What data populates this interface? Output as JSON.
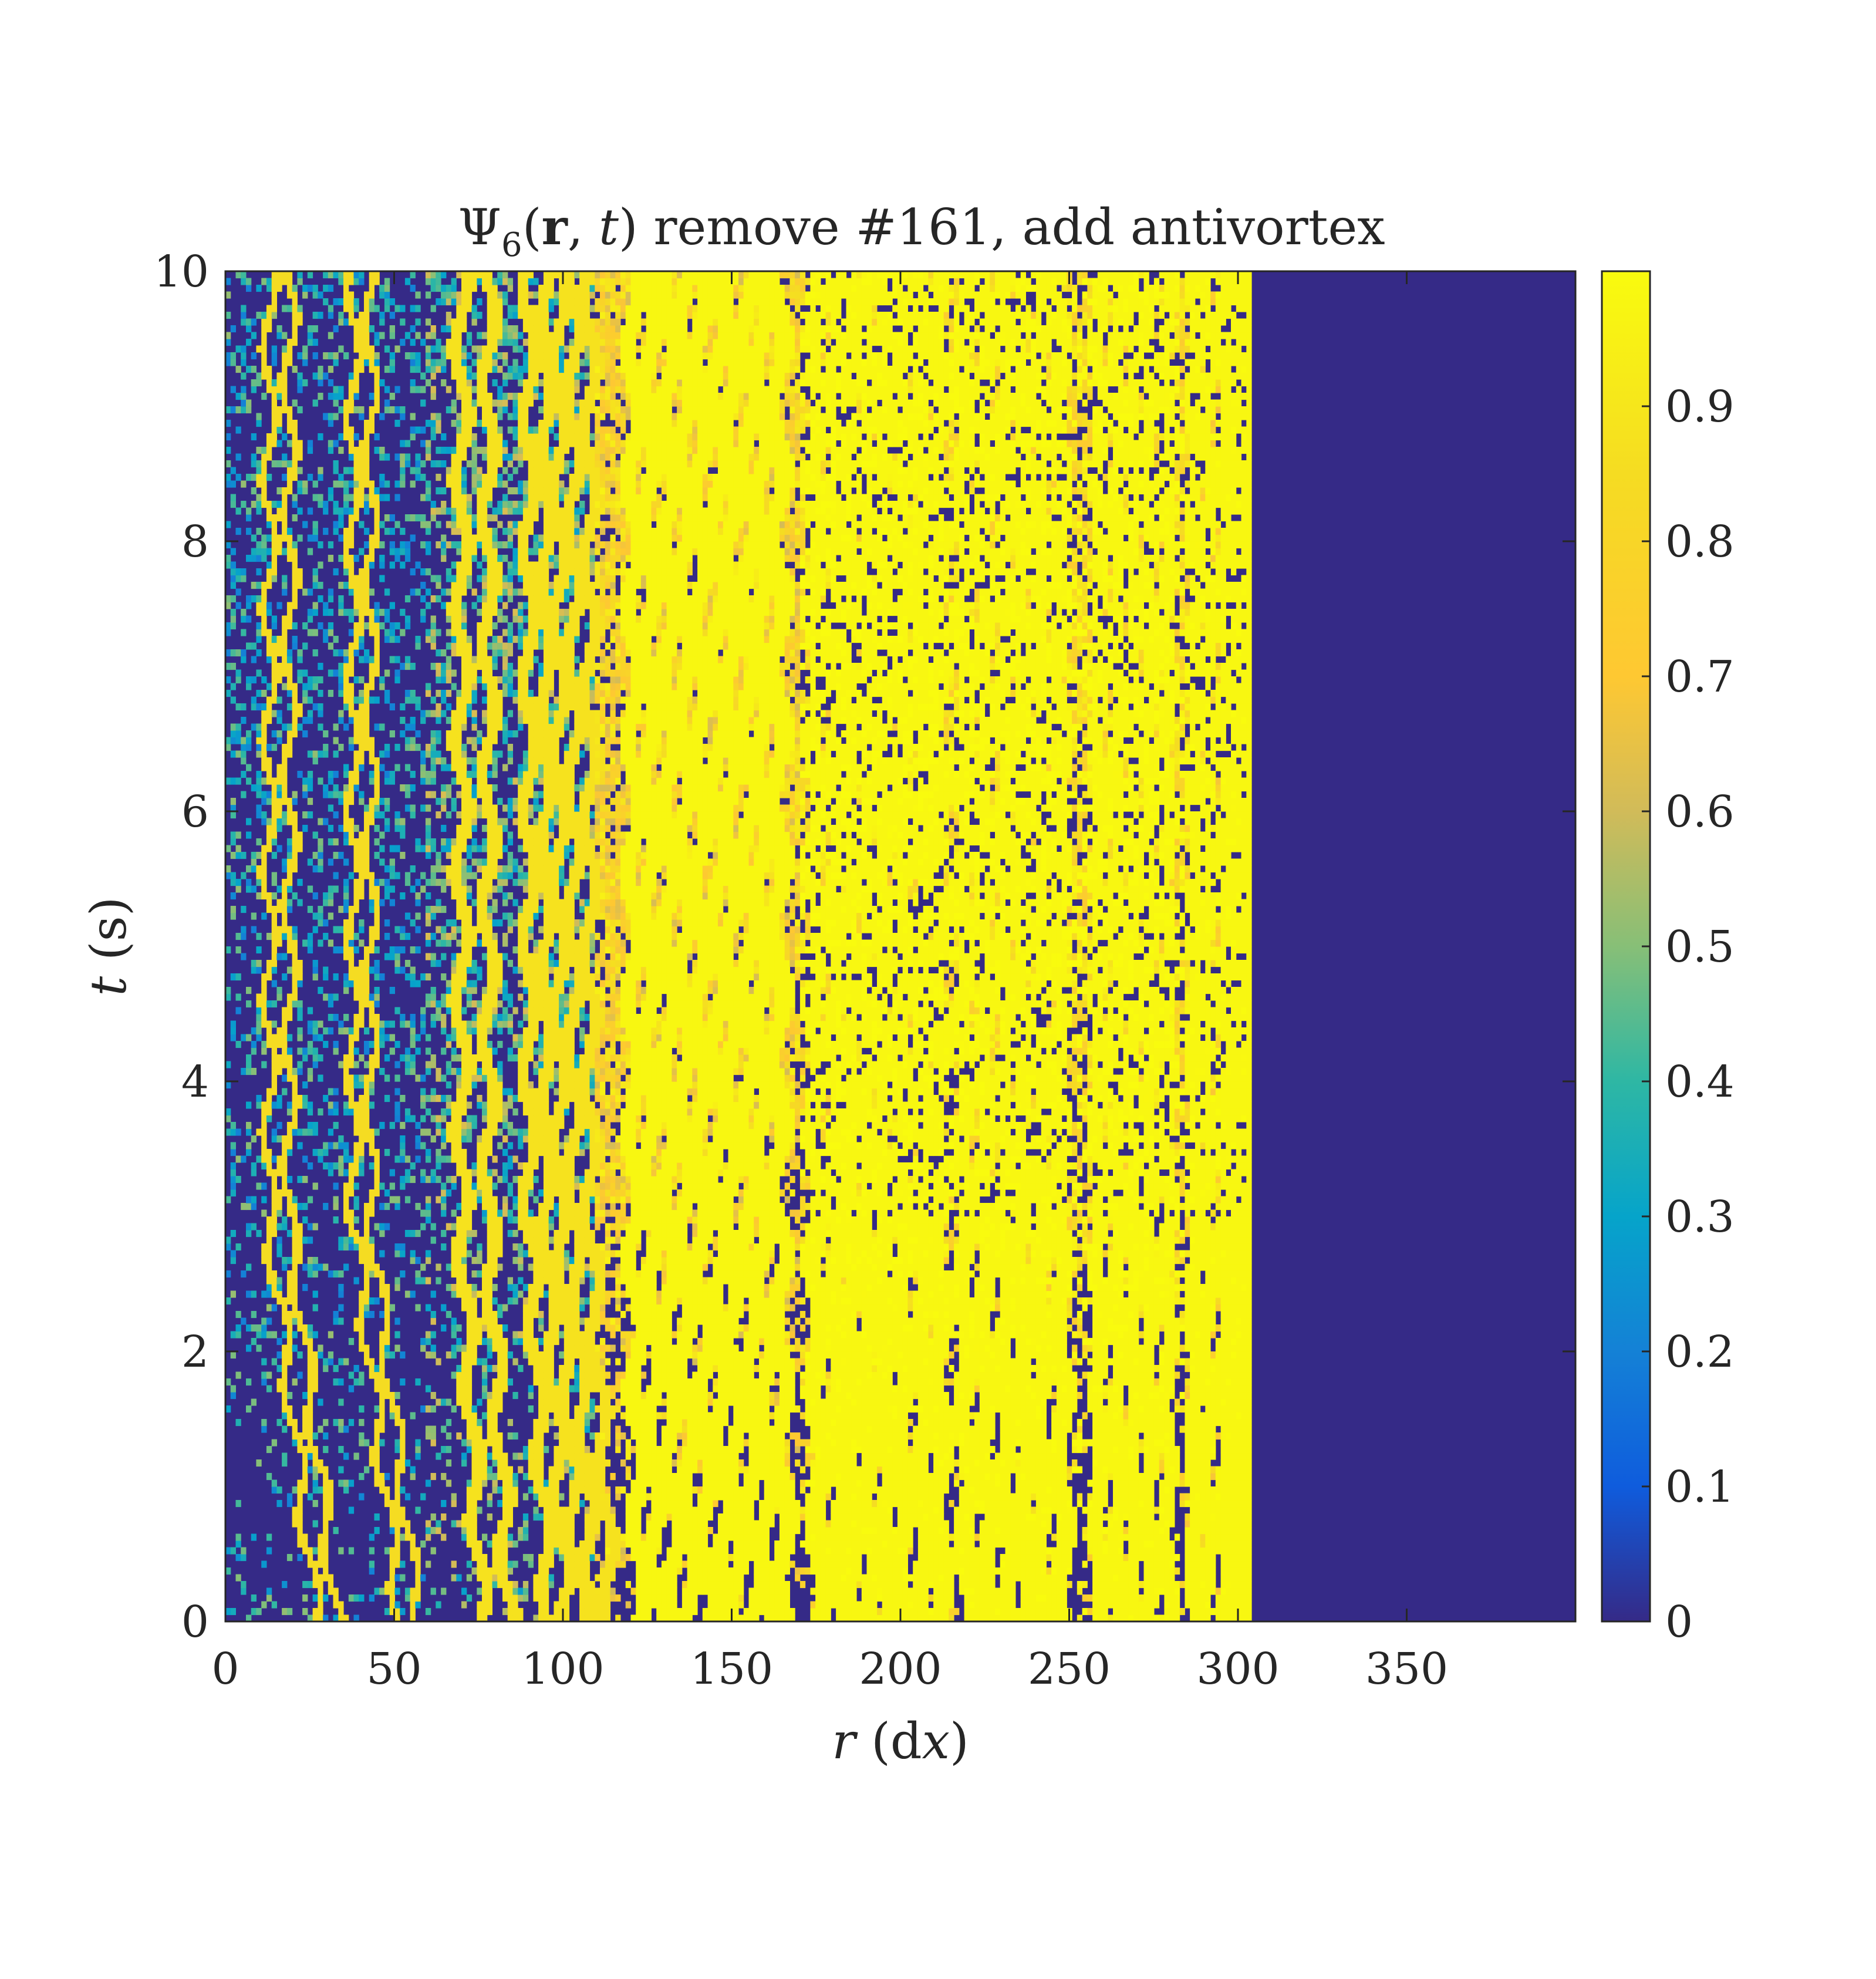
{
  "chart_data": {
    "type": "heatmap",
    "title": "Ψ6(r, t) remove #161, add antivortex",
    "title_parts": {
      "psi": "Ψ",
      "sub": "6",
      "open": "(",
      "r": "r",
      "comma": ", ",
      "t": "t",
      "close": ")",
      "rest": " remove #161, add antivortex"
    },
    "xlabel": "r (dx)",
    "xlabel_parts": {
      "var": "r",
      "unit": " (d",
      "unit_var": "x",
      "unit_close": ")"
    },
    "ylabel": "t (s)",
    "ylabel_parts": {
      "var": "t",
      "unit": " (s)"
    },
    "xlim": [
      0,
      400
    ],
    "ylim": [
      0,
      10
    ],
    "x_ticks": [
      0,
      50,
      100,
      150,
      200,
      250,
      300,
      350
    ],
    "x_tick_labels": [
      "0",
      "50",
      "100",
      "150",
      "200",
      "250",
      "300",
      "350"
    ],
    "y_ticks": [
      0,
      2,
      4,
      6,
      8,
      10
    ],
    "y_tick_labels": [
      "0",
      "2",
      "4",
      "6",
      "8",
      "10"
    ],
    "colorbar": {
      "colormap": "parula",
      "range": [
        0,
        1
      ],
      "ticks": [
        0,
        0.1,
        0.2,
        0.3,
        0.4,
        0.5,
        0.6,
        0.7,
        0.8,
        0.9
      ],
      "tick_labels": [
        "0",
        "0.1",
        "0.2",
        "0.3",
        "0.4",
        "0.5",
        "0.6",
        "0.7",
        "0.8",
        "0.9"
      ]
    },
    "background_value": 0,
    "active_region_x": [
      0,
      302
    ],
    "trajectory_groups": [
      {
        "x_start": [
          27,
          33,
          52,
          57
        ],
        "value": 0.85,
        "width": 1.2,
        "amp": 2.0,
        "drift": 14,
        "fade_t": 0.3
      },
      {
        "x_start": [
          76,
          84,
          96,
          101,
          105,
          109,
          114
        ],
        "value": 0.88,
        "width": 2.0,
        "amp": 2.0,
        "drift": 6,
        "fade_t": 1.6
      },
      {
        "x_start": [
          123,
          128,
          133,
          138,
          143,
          148,
          152,
          157,
          161,
          166
        ],
        "value": 0.98,
        "width": 2.6,
        "amp": 2.0,
        "drift": 2,
        "fade_t": 2.6
      },
      {
        "x_start": [
          176,
          182,
          186,
          191,
          196,
          201,
          207,
          212,
          220,
          226,
          232,
          237,
          242,
          248
        ],
        "value": 0.98,
        "width": 3.0,
        "amp": 1.5,
        "drift": 1,
        "fade_t": 3.5
      },
      {
        "x_start": [
          259,
          264,
          269,
          274,
          279,
          287,
          291,
          296,
          299,
          302
        ],
        "value": 0.98,
        "width": 2.4,
        "amp": 1.0,
        "drift": 0,
        "fade_t": 4.5
      }
    ],
    "late_band_values": [
      {
        "x_range": [
          0,
          60
        ],
        "value": 0.35
      },
      {
        "x_range": [
          60,
          110
        ],
        "value": 0.45
      },
      {
        "x_range": [
          110,
          170
        ],
        "value": 0.78
      },
      {
        "x_range": [
          170,
          285
        ],
        "value": 0.9
      },
      {
        "x_range": [
          285,
          302
        ],
        "value": 0.85
      }
    ]
  }
}
